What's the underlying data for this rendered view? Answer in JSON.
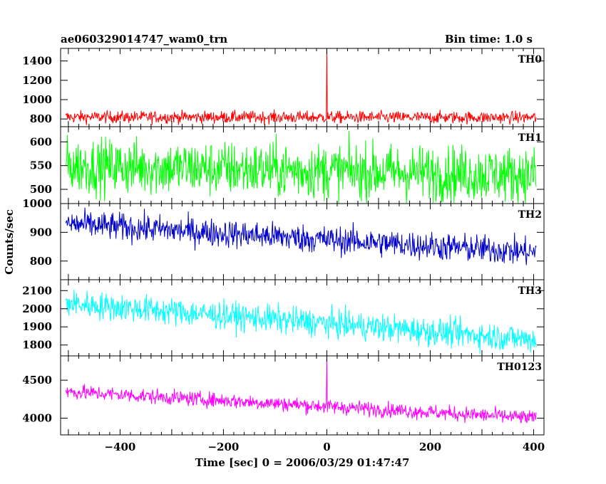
{
  "title_left": "ae060329014747_wam0_trn",
  "title_right": "Bin time: 1.0 s",
  "xlabel": "Time [sec] 0 = 2006/03/29 01:47:47",
  "ylabel": "Counts/sec",
  "chart_data": {
    "type": "line",
    "xlim": [
      -515,
      420
    ],
    "x_ticks": [
      -400,
      -200,
      0,
      200,
      400
    ],
    "x_tick_labels": [
      "−400",
      "−200",
      "0",
      "200",
      "400"
    ],
    "x_range": [
      -505,
      405
    ],
    "panels": [
      {
        "label": "TH0",
        "color": "#ff0000",
        "ylim": [
          720,
          1530
        ],
        "y_ticks": [
          800,
          1000,
          1200,
          1400
        ],
        "base_start": 820,
        "base_end": 815,
        "noise": 45,
        "spike": {
          "x": 0,
          "y": 1530
        }
      },
      {
        "label": "TH1",
        "color": "#00ff00",
        "ylim": [
          470,
          632
        ],
        "y_ticks": [
          500,
          550,
          600
        ],
        "base_start": 550,
        "base_end": 530,
        "noise": 42
      },
      {
        "label": "TH2",
        "color": "#0000cc",
        "ylim": [
          735,
          1000
        ],
        "y_ticks": [
          800,
          900,
          1000
        ],
        "base_start": 930,
        "base_end": 830,
        "noise": 35
      },
      {
        "label": "TH3",
        "color": "#00ffff",
        "ylim": [
          1740,
          2160
        ],
        "y_ticks": [
          1800,
          1900,
          2000,
          2100
        ],
        "base_start": 2030,
        "base_end": 1830,
        "noise": 55
      },
      {
        "label": "TH0123",
        "color": "#ff00ff",
        "ylim": [
          3780,
          4820
        ],
        "y_ticks": [
          4000,
          4500
        ],
        "base_start": 4350,
        "base_end": 4000,
        "noise": 70,
        "spike": {
          "x": 0,
          "y": 4820
        }
      }
    ]
  }
}
